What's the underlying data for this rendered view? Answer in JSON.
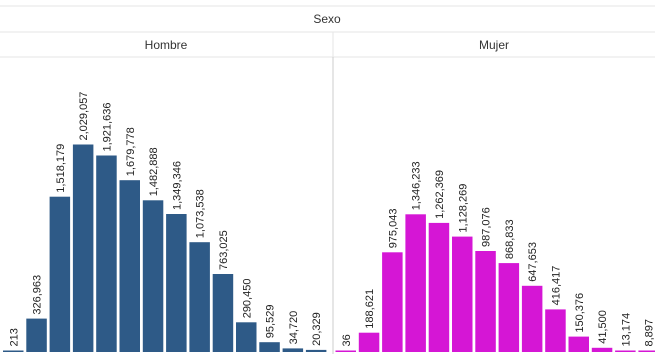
{
  "chart_data": {
    "type": "bar",
    "title": "",
    "header": "Sexo",
    "ylim": [
      0,
      2200000
    ],
    "panels": [
      {
        "name": "Hombre",
        "color": "#2e5a87",
        "values": [
          213,
          326963,
          1518179,
          2029057,
          1921636,
          1679778,
          1482888,
          1349346,
          1073538,
          763025,
          290450,
          95529,
          34720,
          20329
        ],
        "labels": [
          "213",
          "326,963",
          "1,518,179",
          "2,029,057",
          "1,921,636",
          "1,679,778",
          "1,482,888",
          "1,349,346",
          "1,073,538",
          "763,025",
          "290,450",
          "95,529",
          "34,720",
          "20,329"
        ]
      },
      {
        "name": "Mujer",
        "color": "#d516d5",
        "values": [
          36,
          188621,
          975043,
          1346233,
          1262369,
          1128269,
          987076,
          868833,
          647653,
          416417,
          150376,
          41500,
          13174,
          8897
        ],
        "labels": [
          "36",
          "188,621",
          "975,043",
          "1,346,233",
          "1,262,369",
          "1,128,269",
          "987,076",
          "868,833",
          "647,653",
          "416,417",
          "150,376",
          "41,500",
          "13,174",
          "8,897"
        ]
      }
    ]
  }
}
